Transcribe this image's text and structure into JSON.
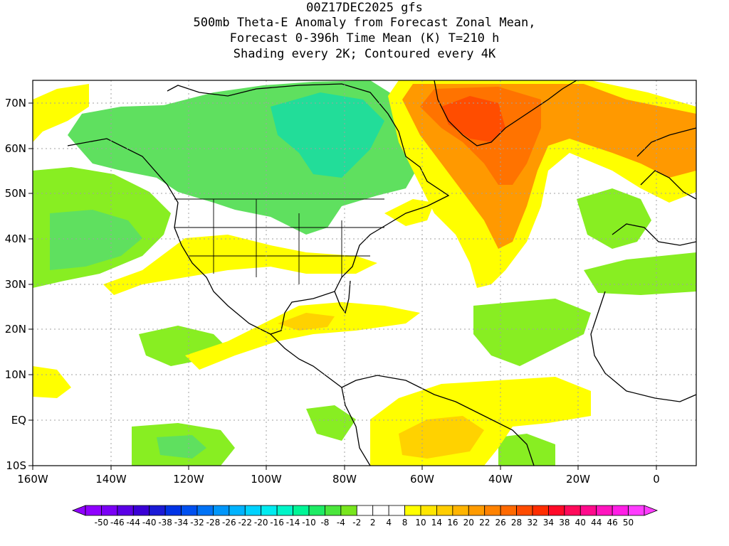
{
  "title": {
    "line1": "00Z17DEC2025 gfs",
    "line2": "500mb Theta-E Anomaly from Forecast Zonal Mean,",
    "line3": "Forecast 0-396h Time Mean (K) T=210 h",
    "line4": "Shading every 2K; Contoured every 4K"
  },
  "axes": {
    "lat_labels": [
      "70N",
      "60N",
      "50N",
      "40N",
      "30N",
      "20N",
      "10N",
      "EQ",
      "10S"
    ],
    "lon_labels": [
      "160W",
      "140W",
      "120W",
      "100W",
      "80W",
      "60W",
      "40W",
      "20W",
      "0"
    ]
  },
  "colorbar": {
    "labels": [
      "-50",
      "-46",
      "-44",
      "-40",
      "-38",
      "-34",
      "-32",
      "-28",
      "-26",
      "-22",
      "-20",
      "-16",
      "-14",
      "-10",
      "-8",
      "-4",
      "-2",
      "2",
      "4",
      "8",
      "10",
      "14",
      "16",
      "20",
      "22",
      "26",
      "28",
      "32",
      "34",
      "38",
      "40",
      "44",
      "46",
      "50"
    ],
    "colors": [
      "#8f00ff",
      "#7a00f5",
      "#5a00e6",
      "#3a00d6",
      "#1a1ad6",
      "#0033e6",
      "#0050f0",
      "#0072f5",
      "#0096fa",
      "#00b3ff",
      "#00d2ff",
      "#00ebf0",
      "#00f5c8",
      "#00f596",
      "#1eeb64",
      "#4be63c",
      "#78e61e",
      "#ffffff",
      "#ffffff",
      "#ffffff",
      "#ffff00",
      "#ffe600",
      "#ffcd00",
      "#ffb400",
      "#ff9b00",
      "#ff8200",
      "#ff6900",
      "#ff4b00",
      "#ff2d00",
      "#ff0a28",
      "#ff0a5a",
      "#ff0a8c",
      "#ff14be",
      "#ff1ee6",
      "#ff3cff"
    ]
  },
  "fields": {
    "green_mid": "#5fe05f",
    "green_light": "#88ee22",
    "green_cyan": "#22dd99",
    "yellow": "#ffff00",
    "yellow_orange": "#ffd200",
    "orange": "#ff9900",
    "orange_dark": "#ff7300",
    "red_orange": "#ff4d00"
  },
  "frame_color": "#000000",
  "grid_color": "#a0a0a0"
}
